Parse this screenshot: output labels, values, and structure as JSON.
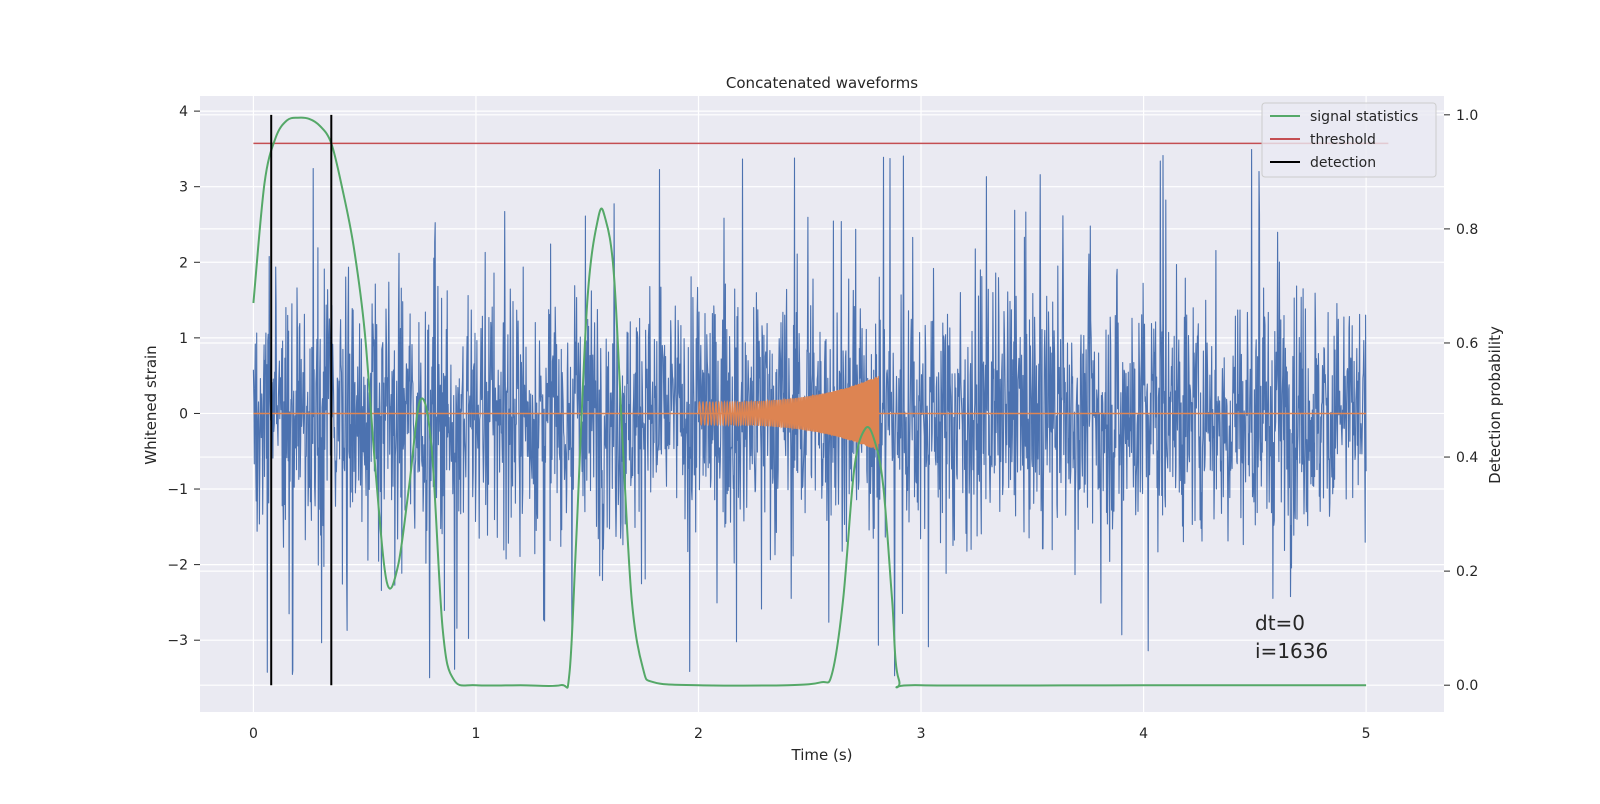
{
  "chart_data": {
    "type": "line",
    "title": "Concatenated waveforms",
    "xlabel": "Time (s)",
    "ylabel": "Whitened strain",
    "ylabel_right": "Detection probability",
    "xlim": [
      -0.24,
      5.35
    ],
    "ylim": [
      -3.95,
      4.2
    ],
    "ylim_right": [
      -0.047,
      1.033
    ],
    "x_ticks": [
      0,
      1,
      2,
      3,
      4,
      5
    ],
    "y_ticks": [
      -3,
      -2,
      -1,
      0,
      1,
      2,
      3,
      4
    ],
    "y_ticks_right": [
      0.0,
      0.2,
      0.4,
      0.6,
      0.8,
      1.0
    ],
    "x_tick_labels": [
      "0",
      "1",
      "2",
      "3",
      "4",
      "5"
    ],
    "y_tick_labels": [
      "−3",
      "−2",
      "−1",
      "0",
      "1",
      "2",
      "3",
      "4"
    ],
    "y_tick_labels_right": [
      "0.0",
      "0.2",
      "0.4",
      "0.6",
      "0.8",
      "1.0"
    ],
    "grid": true,
    "legend_position": "top-right",
    "legend": [
      "signal statistics",
      "threshold",
      "detection"
    ],
    "series": [
      {
        "name": "",
        "axis": "left",
        "kind": "noise",
        "color": "#4c72b0",
        "x_range": [
          0,
          5
        ],
        "y_range": [
          -3.5,
          3.8
        ],
        "typical_amplitude": 1.4
      },
      {
        "name": "",
        "axis": "left",
        "kind": "chirp",
        "color": "#dd8452",
        "flat_x_range": [
          0,
          5
        ],
        "chirp_x_range": [
          2.0,
          2.81
        ],
        "amplitude_start": 0.15,
        "amplitude_end": 0.5
      },
      {
        "name": "signal statistics",
        "axis": "right",
        "color": "#55a868",
        "x": [
          0,
          0.05,
          0.1,
          0.15,
          0.2,
          0.25,
          0.3,
          0.35,
          0.4,
          0.45,
          0.5,
          0.55,
          0.6,
          0.65,
          0.7,
          0.75,
          0.8,
          0.85,
          0.9,
          1.0,
          1.2,
          1.38,
          1.42,
          1.45,
          1.5,
          1.55,
          1.58,
          1.62,
          1.66,
          1.7,
          1.75,
          1.8,
          2.0,
          2.4,
          2.55,
          2.6,
          2.65,
          2.7,
          2.75,
          2.79,
          2.83,
          2.87,
          2.9,
          3.0,
          4.0,
          5.0
        ],
        "y": [
          0.67,
          0.88,
          0.96,
          0.99,
          0.995,
          0.993,
          0.98,
          0.95,
          0.87,
          0.77,
          0.62,
          0.37,
          0.18,
          0.21,
          0.35,
          0.5,
          0.42,
          0.1,
          0.01,
          0.0,
          0.0,
          0.0,
          0.02,
          0.25,
          0.67,
          0.82,
          0.82,
          0.72,
          0.42,
          0.15,
          0.03,
          0.005,
          0.0,
          0.0,
          0.005,
          0.02,
          0.15,
          0.38,
          0.45,
          0.43,
          0.35,
          0.15,
          0.01,
          0.0,
          0.0,
          0.0
        ]
      },
      {
        "name": "threshold",
        "axis": "right",
        "color": "#c44e52",
        "x": [
          0,
          5.1
        ],
        "y": [
          0.95,
          0.95
        ]
      },
      {
        "name": "detection",
        "axis": "right",
        "color": "#000000",
        "x_positions": [
          0.08,
          0.35
        ],
        "y_extent": [
          0.0,
          1.0
        ]
      }
    ],
    "annotations": [
      "dt=0",
      "i=1636"
    ]
  }
}
